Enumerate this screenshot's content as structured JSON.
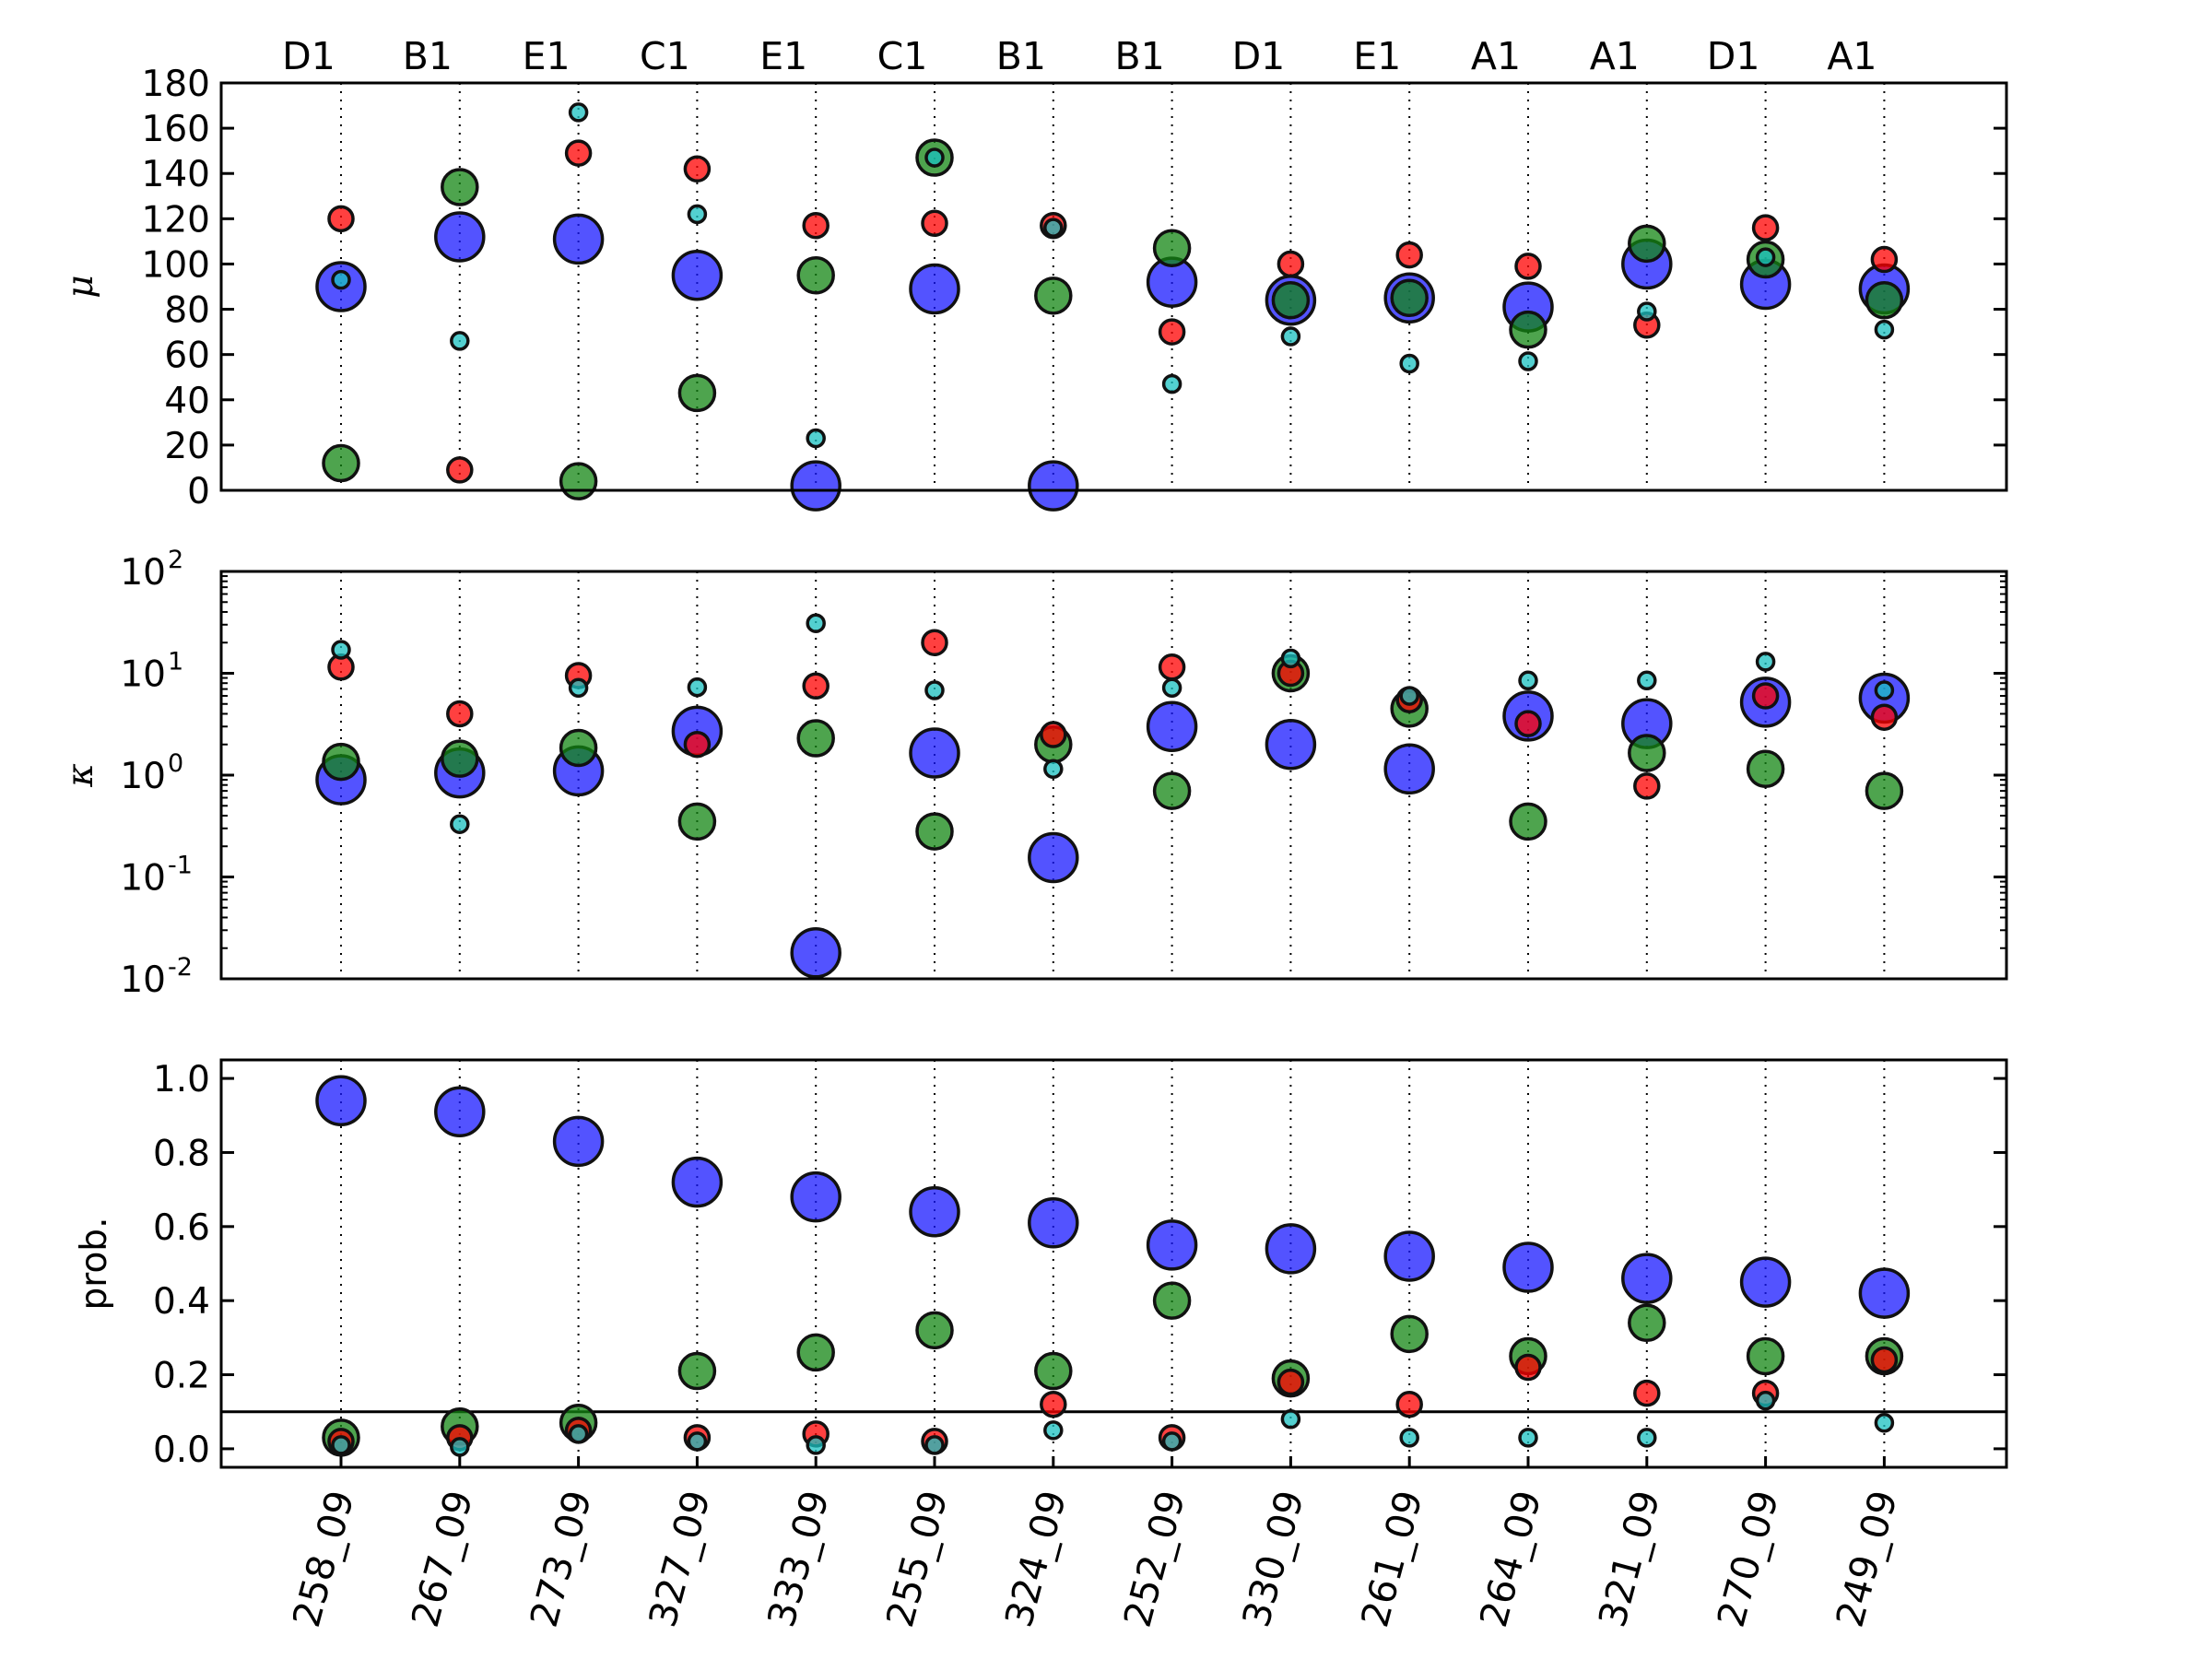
{
  "chart_data": {
    "type": "scatter",
    "categories": [
      "258_09",
      "267_09",
      "273_09",
      "327_09",
      "333_09",
      "255_09",
      "324_09",
      "252_09",
      "330_09",
      "261_09",
      "264_09",
      "321_09",
      "270_09",
      "249_09"
    ],
    "top_labels": [
      "D1",
      "B1",
      "E1",
      "C1",
      "E1",
      "C1",
      "B1",
      "B1",
      "D1",
      "E1",
      "A1",
      "A1",
      "D1",
      "A1"
    ],
    "series_colors": {
      "blue": "#1a1aff",
      "green": "#138513",
      "red": "#ff0000",
      "cyan": "#19c0c0"
    },
    "panels": [
      {
        "ylabel": "μ",
        "scale": "linear",
        "ylim": [
          0,
          180
        ],
        "yticks": [
          "0",
          "20",
          "40",
          "60",
          "80",
          "100",
          "120",
          "140",
          "160",
          "180"
        ],
        "series": [
          {
            "color": "blue",
            "values": [
              90,
              112,
              111,
              95,
              2,
              89,
              2,
              92,
              84,
              85,
              81,
              100,
              91,
              89
            ]
          },
          {
            "color": "green",
            "values": [
              12,
              134,
              4,
              43,
              95,
              147,
              86,
              107,
              84,
              85,
              71,
              109,
              102,
              84
            ]
          },
          {
            "color": "red",
            "values": [
              120,
              9,
              149,
              142,
              117,
              118,
              117,
              70,
              100,
              104,
              99,
              73,
              116,
              102
            ]
          },
          {
            "color": "cyan",
            "values": [
              93,
              66,
              167,
              122,
              23,
              147,
              116,
              47,
              68,
              56,
              57,
              79,
              103,
              71
            ]
          }
        ]
      },
      {
        "ylabel": "κ",
        "scale": "log",
        "ylim": [
          0.01,
          100
        ],
        "yticks": [
          {
            "base": "10",
            "exp": "-2"
          },
          {
            "base": "10",
            "exp": "-1"
          },
          {
            "base": "10",
            "exp": "0"
          },
          {
            "base": "10",
            "exp": "1"
          },
          {
            "base": "10",
            "exp": "2"
          }
        ],
        "series": [
          {
            "color": "blue",
            "values": [
              0.9,
              1.05,
              1.1,
              2.7,
              0.018,
              1.65,
              0.155,
              3.0,
              2.0,
              1.15,
              3.8,
              3.2,
              5.2,
              5.7
            ]
          },
          {
            "color": "green",
            "values": [
              1.35,
              1.45,
              1.85,
              0.35,
              2.3,
              0.28,
              2.0,
              0.7,
              10.0,
              4.5,
              0.35,
              1.65,
              1.15,
              0.7
            ]
          },
          {
            "color": "red",
            "values": [
              11.5,
              4.0,
              9.5,
              2.0,
              7.5,
              20.0,
              2.5,
              11.5,
              10.0,
              5.5,
              3.2,
              0.78,
              6.0,
              3.7
            ]
          },
          {
            "color": "cyan",
            "values": [
              17.0,
              0.33,
              7.2,
              7.3,
              31.0,
              6.8,
              1.15,
              7.2,
              14.0,
              6.0,
              8.5,
              8.5,
              13.0,
              6.8
            ]
          }
        ]
      },
      {
        "ylabel": "prob.",
        "scale": "linear",
        "ylim": [
          -0.05,
          1.05
        ],
        "yticks": [
          "0.0",
          "0.2",
          "0.4",
          "0.6",
          "0.8",
          "1.0"
        ],
        "hline": 0.1,
        "series": [
          {
            "color": "blue",
            "values": [
              0.94,
              0.91,
              0.83,
              0.72,
              0.68,
              0.64,
              0.61,
              0.55,
              0.54,
              0.52,
              0.49,
              0.46,
              0.45,
              0.42
            ]
          },
          {
            "color": "green",
            "values": [
              0.03,
              0.06,
              0.07,
              0.21,
              0.26,
              0.32,
              0.21,
              0.4,
              0.19,
              0.31,
              0.25,
              0.34,
              0.25,
              0.25
            ]
          },
          {
            "color": "red",
            "values": [
              0.02,
              0.03,
              0.05,
              0.03,
              0.04,
              0.02,
              0.12,
              0.03,
              0.18,
              0.12,
              0.22,
              0.15,
              0.15,
              0.24
            ]
          },
          {
            "color": "cyan",
            "values": [
              0.01,
              0.005,
              0.04,
              0.02,
              0.01,
              0.01,
              0.05,
              0.02,
              0.08,
              0.03,
              0.03,
              0.03,
              0.13,
              0.07
            ]
          }
        ]
      }
    ]
  }
}
